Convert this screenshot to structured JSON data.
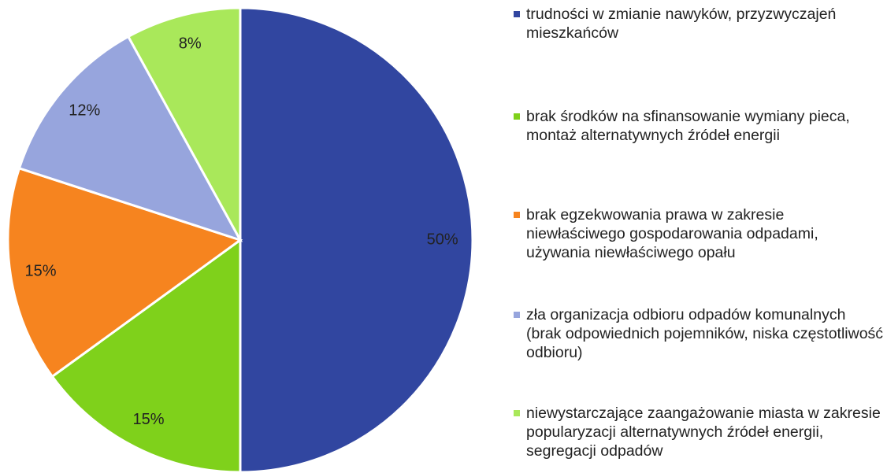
{
  "chart_data": {
    "type": "pie",
    "categories": [
      "trudności w zmianie nawyków, przyzwyczajeń mieszkańców",
      "brak środków na sfinansowanie wymiany pieca, montaż alternatywnych źródeł energii",
      "brak egzekwowania prawa w zakresie niewłaściwego gospodarowania odpadami, używania niewłaściwego opału",
      "zła organizacja odbioru odpadów komunalnych (brak odpowiednich pojemników, niska częstotliwość odbioru)",
      "niewystarczające zaangażowanie miasta w zakresie popularyzacji alternatywnych źródeł energii, segregacji odpadów"
    ],
    "values": [
      50,
      15,
      15,
      12,
      8
    ],
    "value_labels": [
      "50%",
      "15%",
      "15%",
      "12%",
      "8%"
    ],
    "colors": [
      "#3146a0",
      "#7fd11b",
      "#f6841f",
      "#97a5dd",
      "#a9e85a"
    ],
    "legend": "right"
  }
}
